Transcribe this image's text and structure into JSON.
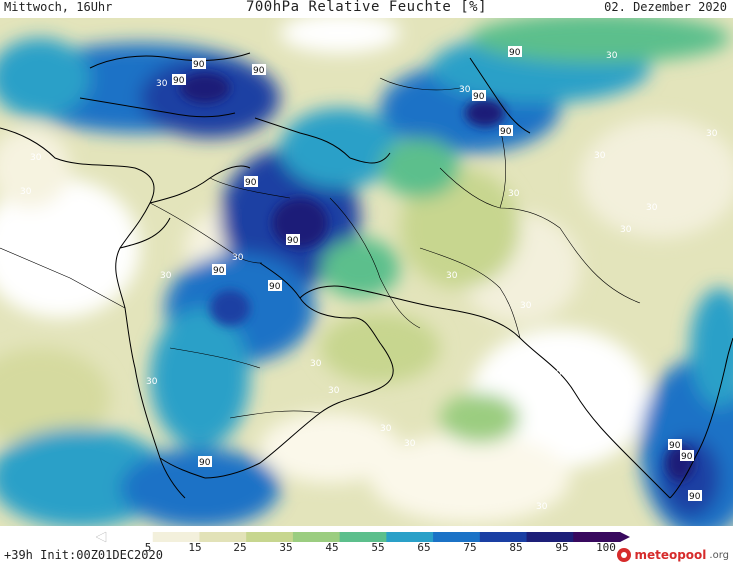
{
  "header": {
    "left": "Mittwoch, 16Uhr",
    "title": "700hPa Relative Feuchte [%]",
    "right": "02. Dezember 2020"
  },
  "footer": {
    "run_info": "+39h Init:00Z01DEC2020",
    "logo_main": "meteopool",
    "logo_tld": ".org"
  },
  "colorbar": {
    "ticks": [
      "5",
      "15",
      "25",
      "35",
      "45",
      "55",
      "65",
      "75",
      "85",
      "95",
      "100"
    ],
    "colors": [
      "#ffffff",
      "#f3f0dc",
      "#e2e2b8",
      "#c7d68f",
      "#9bcd80",
      "#5cbf8c",
      "#2aa0c8",
      "#1b72c6",
      "#1a3fa3",
      "#1d1f78",
      "#38095e"
    ]
  },
  "map": {
    "variable": "relative humidity 700hPa",
    "contour_labels": [
      "30",
      "30",
      "30",
      "30",
      "30",
      "30",
      "30",
      "30",
      "30",
      "30",
      "30",
      "30",
      "30",
      "30",
      "30",
      "30",
      "30",
      "30",
      "30",
      "30",
      "30",
      "90",
      "90",
      "90",
      "90",
      "90",
      "90",
      "90",
      "90",
      "90",
      "90",
      "90",
      "90",
      "90",
      "90"
    ]
  }
}
